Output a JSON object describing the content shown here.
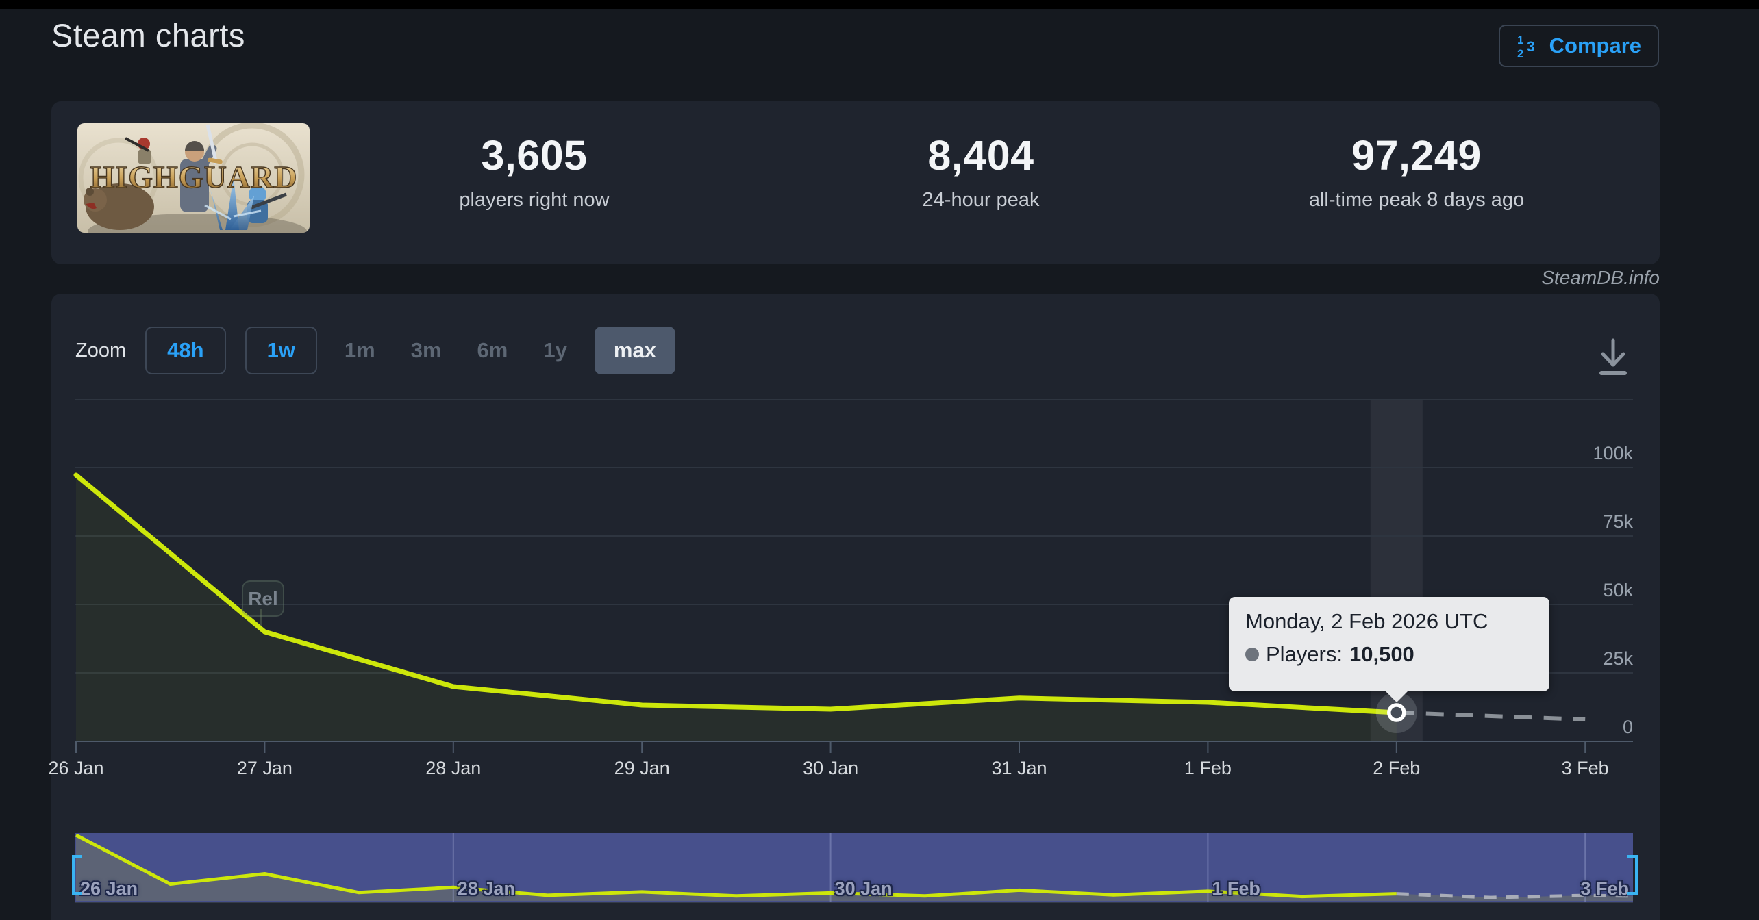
{
  "header": {
    "title": "Steam charts",
    "compare_label": "Compare"
  },
  "stats": {
    "game_title": "HIGHGUARD",
    "items": [
      {
        "value": "3,605",
        "label": "players right now"
      },
      {
        "value": "8,404",
        "label": "24-hour peak"
      },
      {
        "value": "97,249",
        "label": "all-time peak 8 days ago"
      }
    ]
  },
  "watermark": "SteamDB.info",
  "toolbar": {
    "zoom_label": "Zoom",
    "ranges": [
      {
        "label": "48h",
        "state": "outline"
      },
      {
        "label": "1w",
        "state": "outline"
      },
      {
        "label": "1m",
        "state": "disabled"
      },
      {
        "label": "3m",
        "state": "disabled"
      },
      {
        "label": "6m",
        "state": "disabled"
      },
      {
        "label": "1y",
        "state": "disabled"
      },
      {
        "label": "max",
        "state": "selected"
      }
    ]
  },
  "chart_data": {
    "type": "line",
    "title": "",
    "xlabel": "",
    "ylabel": "",
    "categories": [
      "26 Jan",
      "27 Jan",
      "28 Jan",
      "29 Jan",
      "30 Jan",
      "31 Jan",
      "1 Feb",
      "2 Feb",
      "3 Feb"
    ],
    "series": [
      {
        "name": "Players",
        "color": "#cde70b",
        "values": [
          97249,
          40000,
          20000,
          13250,
          11750,
          15800,
          14250,
          10500
        ],
        "projected_values": [
          10500,
          8000
        ],
        "projected_from_index": 7,
        "projected_style": "gray-dashed"
      }
    ],
    "ylim": [
      0,
      125000
    ],
    "yticks": [
      {
        "label": "100k",
        "value": 100000
      },
      {
        "label": "75k",
        "value": 75000
      },
      {
        "label": "50k",
        "value": 50000
      },
      {
        "label": "25k",
        "value": 25000
      },
      {
        "label": "0",
        "value": 0
      }
    ],
    "grid": "horizontal",
    "legend": "none",
    "release_marker": {
      "label": "Rel",
      "day_position": 0.98
    },
    "navigator": {
      "labels": [
        {
          "label": "26 Jan",
          "index": 0
        },
        {
          "label": "28 Jan",
          "index": 2
        },
        {
          "label": "30 Jan",
          "index": 4
        },
        {
          "label": "1 Feb",
          "index": 6
        },
        {
          "label": "3 Feb",
          "index": 8
        }
      ]
    }
  },
  "tooltip": {
    "title": "Monday, 2 Feb 2026 UTC",
    "series_label": "Players:",
    "value": "10,500",
    "point_index": 7
  },
  "colors": {
    "accent_blue": "#2aa1f7",
    "line": "#cde70b",
    "tooltip_bg": "#e9eaec",
    "nav_bg": "#47508c",
    "nav_fill": "#5c6375",
    "handle": "#3ab4f2",
    "card_bg": "#1f242e",
    "page_bg": "#15191f"
  }
}
